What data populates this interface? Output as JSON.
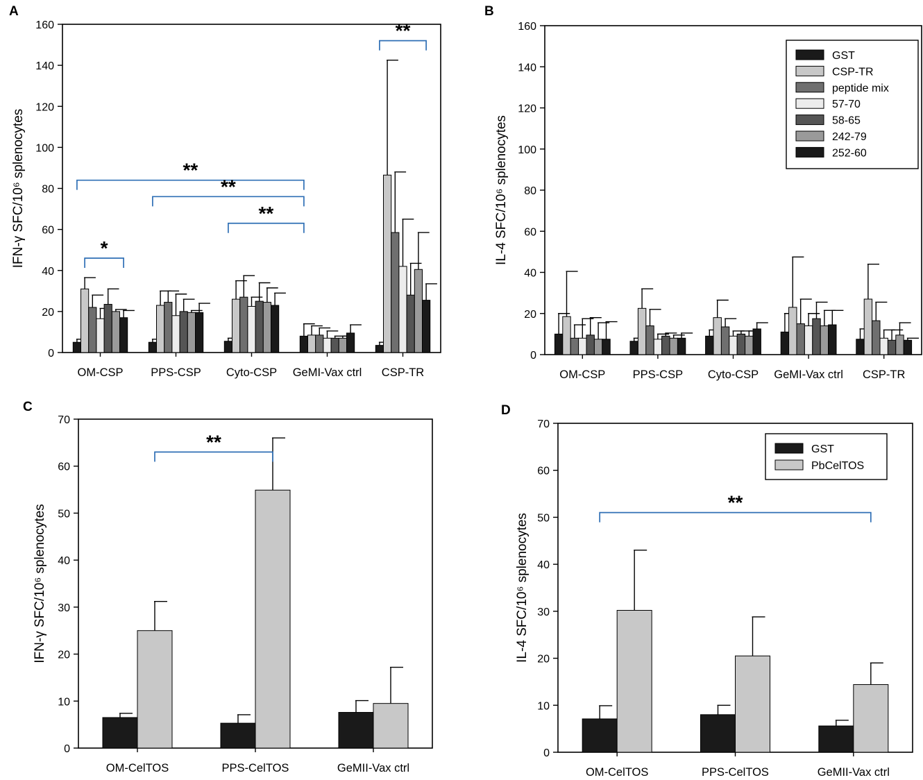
{
  "colors": {
    "frame": "#000000",
    "bracket": "#2f6fb5",
    "GST": "#1a1a1a",
    "CSP-TR": "#c8c8c8",
    "peptide mix": "#6f6f6f",
    "57-70": "#ececec",
    "58-65": "#555555",
    "242-79": "#9a9a9a",
    "252-60": "#1a1a1a",
    "PbCelTOS": "#c8c8c8"
  },
  "chart_data": [
    {
      "panel": "A",
      "type": "bar",
      "ylabel": "IFN-γ SFC/10⁶ splenocytes",
      "ylim": [
        0,
        160
      ],
      "yticks": [
        "0",
        "20",
        "40",
        "60",
        "80",
        "100",
        "120",
        "140",
        "160"
      ],
      "categories": [
        "OM-CSP",
        "PPS-CSP",
        "Cyto-CSP",
        "GeMI-Vax ctrl",
        "CSP-TR"
      ],
      "series": [
        {
          "name": "GST",
          "values": [
            5,
            5,
            5.5,
            8,
            3.5
          ],
          "errors": [
            1.5,
            1.5,
            1.5,
            6,
            1.5
          ]
        },
        {
          "name": "CSP-TR",
          "values": [
            31,
            23,
            26,
            8.5,
            86.5
          ],
          "errors": [
            5.5,
            7,
            9,
            4.5,
            56
          ]
        },
        {
          "name": "peptide mix",
          "values": [
            22,
            24.5,
            27,
            8.5,
            58.5
          ],
          "errors": [
            6,
            5.5,
            10.5,
            3.5,
            29.5
          ]
        },
        {
          "name": "57-70",
          "values": [
            16.5,
            18,
            22.5,
            7,
            42
          ],
          "errors": [
            5,
            10.5,
            4.5,
            3.5,
            23
          ]
        },
        {
          "name": "58-65",
          "values": [
            23.5,
            20,
            25,
            7,
            28
          ],
          "errors": [
            7.5,
            6,
            9,
            1,
            15.5
          ]
        },
        {
          "name": "242-79",
          "values": [
            20,
            19.5,
            24.5,
            7,
            40.5
          ],
          "errors": [
            1,
            1,
            7,
            1,
            18
          ]
        },
        {
          "name": "252-60",
          "values": [
            17,
            19.5,
            23,
            9.5,
            25.5
          ],
          "errors": [
            3.5,
            4.5,
            6,
            4,
            8
          ]
        }
      ],
      "annotations": [
        {
          "label": "*",
          "from": 0,
          "to": 0,
          "sub_from": 1,
          "sub_to": 6,
          "y": 46
        },
        {
          "label": "**",
          "from": 0,
          "to": 3,
          "y": 84
        },
        {
          "label": "**",
          "from": 1,
          "to": 3,
          "y": 76
        },
        {
          "label": "**",
          "from": 2,
          "to": 3,
          "y": 63
        },
        {
          "label": "**",
          "from": 4,
          "to": 4,
          "sub_from": 0,
          "sub_to": 6,
          "y": 152
        }
      ]
    },
    {
      "panel": "B",
      "type": "bar",
      "ylabel": "IL-4 SFC/10⁶ splenocytes",
      "ylim": [
        0,
        160
      ],
      "yticks": [
        "0",
        "20",
        "40",
        "60",
        "80",
        "100",
        "120",
        "140",
        "160"
      ],
      "categories": [
        "OM-CSP",
        "PPS-CSP",
        "Cyto-CSP",
        "GeMI-Vax ctrl",
        "CSP-TR"
      ],
      "legend": [
        "GST",
        "CSP-TR",
        "peptide mix",
        "57-70",
        "58-65",
        "242-79",
        "252-60"
      ],
      "series": [
        {
          "name": "GST",
          "values": [
            10,
            6.5,
            9,
            11,
            7.5
          ],
          "errors": [
            10,
            1.5,
            3,
            9,
            5
          ]
        },
        {
          "name": "CSP-TR",
          "values": [
            18.5,
            22.5,
            18,
            23,
            27
          ],
          "errors": [
            22,
            9.5,
            8.5,
            24.5,
            17
          ]
        },
        {
          "name": "peptide mix",
          "values": [
            8,
            14,
            13.5,
            15,
            16.5
          ],
          "errors": [
            6.5,
            8,
            4,
            12,
            9
          ]
        },
        {
          "name": "57-70",
          "values": [
            8,
            7.5,
            9,
            14,
            8
          ],
          "errors": [
            9.5,
            2.5,
            2.5,
            6,
            4
          ]
        },
        {
          "name": "58-65",
          "values": [
            9.5,
            9,
            10,
            17.5,
            7
          ],
          "errors": [
            8.5,
            1.5,
            1.5,
            8,
            5
          ]
        },
        {
          "name": "242-79",
          "values": [
            7.5,
            8,
            9,
            14,
            9.5
          ],
          "errors": [
            8,
            1.5,
            2.5,
            7.5,
            6
          ]
        },
        {
          "name": "252-60",
          "values": [
            7.5,
            8,
            12.5,
            14.5,
            7
          ],
          "errors": [
            8.5,
            2.5,
            3,
            7,
            1
          ]
        }
      ]
    },
    {
      "panel": "C",
      "type": "bar",
      "ylabel": "IFN-γ SFC/10⁶ splenocytes",
      "ylim": [
        0,
        70
      ],
      "yticks": [
        "0",
        "10",
        "20",
        "30",
        "40",
        "50",
        "60",
        "70"
      ],
      "categories": [
        "OM-CelTOS",
        "PPS-CelTOS",
        "GeMII-Vax ctrl"
      ],
      "series": [
        {
          "name": "GST",
          "values": [
            6.5,
            5.3,
            7.6
          ],
          "errors": [
            0.9,
            1.8,
            2.5
          ]
        },
        {
          "name": "PbCelTOS",
          "values": [
            25,
            54.9,
            9.5
          ],
          "errors": [
            6.2,
            11.1,
            7.7
          ]
        }
      ],
      "annotations": [
        {
          "label": "**",
          "from": 0,
          "to": 1,
          "sub_from": 1,
          "sub_to": 1,
          "y": 63
        }
      ]
    },
    {
      "panel": "D",
      "type": "bar",
      "ylabel": "IL-4 SFC/10⁶ splenocytes",
      "ylim": [
        0,
        70
      ],
      "yticks": [
        "0",
        "10",
        "20",
        "30",
        "40",
        "50",
        "60",
        "70"
      ],
      "categories": [
        "OM-CelTOS",
        "PPS-CelTOS",
        "GeMII-Vax ctrl"
      ],
      "legend": [
        "GST",
        "PbCelTOS"
      ],
      "series": [
        {
          "name": "GST",
          "values": [
            7.1,
            8,
            5.6
          ],
          "errors": [
            2.8,
            2,
            1.2
          ]
        },
        {
          "name": "PbCelTOS",
          "values": [
            30.2,
            20.5,
            14.4
          ],
          "errors": [
            12.8,
            8.3,
            4.6
          ]
        }
      ],
      "annotations": [
        {
          "label": "**",
          "from": 0,
          "to": 2,
          "sub_from": 0,
          "sub_to": 1,
          "y": 51
        }
      ]
    }
  ]
}
